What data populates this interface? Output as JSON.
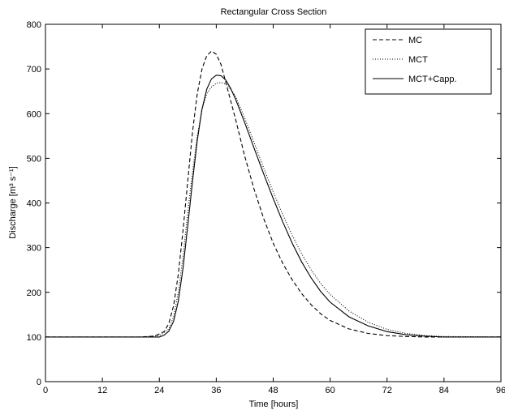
{
  "chart_data": {
    "type": "line",
    "title": "Rectangular Cross Section",
    "xlabel": "Time [hours]",
    "ylabel": "Discharge [m³ s⁻¹]",
    "xlim": [
      0,
      96
    ],
    "ylim": [
      0,
      800
    ],
    "xticks": [
      0,
      12,
      24,
      36,
      48,
      60,
      72,
      84,
      96
    ],
    "yticks": [
      0,
      100,
      200,
      300,
      400,
      500,
      600,
      700,
      800
    ],
    "grid": false,
    "legend_position": "top-right",
    "series": [
      {
        "name": "MC",
        "style": "dashed",
        "x": [
          0,
          20,
          23,
          25,
          26,
          27,
          28,
          29,
          30,
          31,
          32,
          33,
          34,
          35,
          36,
          37,
          38,
          40,
          42,
          44,
          46,
          48,
          50,
          52,
          54,
          56,
          58,
          60,
          64,
          68,
          72,
          76,
          80,
          84,
          96
        ],
        "y": [
          100,
          100,
          102,
          112,
          130,
          170,
          240,
          340,
          450,
          560,
          645,
          700,
          730,
          740,
          733,
          710,
          670,
          590,
          505,
          430,
          365,
          310,
          265,
          228,
          197,
          172,
          152,
          137,
          118,
          108,
          103,
          101,
          100,
          100,
          100
        ]
      },
      {
        "name": "MCT",
        "style": "dotted",
        "x": [
          0,
          20,
          24,
          26,
          27,
          28,
          29,
          30,
          31,
          32,
          33,
          34,
          35,
          36,
          37,
          38,
          39,
          40,
          42,
          44,
          46,
          48,
          50,
          52,
          54,
          56,
          58,
          60,
          64,
          68,
          72,
          76,
          80,
          84,
          96
        ],
        "y": [
          100,
          100,
          103,
          118,
          145,
          200,
          280,
          380,
          470,
          550,
          610,
          645,
          660,
          668,
          670,
          666,
          655,
          640,
          590,
          535,
          478,
          425,
          374,
          328,
          286,
          250,
          220,
          195,
          158,
          133,
          117,
          108,
          103,
          101,
          100
        ]
      },
      {
        "name": "MCT+Capp.",
        "style": "solid",
        "x": [
          0,
          20,
          24,
          25,
          26,
          27,
          28,
          29,
          30,
          31,
          32,
          33,
          34,
          35,
          36,
          37,
          38,
          39,
          40,
          42,
          44,
          46,
          48,
          50,
          52,
          54,
          56,
          58,
          60,
          64,
          68,
          72,
          76,
          80,
          84,
          96
        ],
        "y": [
          100,
          100,
          100,
          104,
          113,
          135,
          180,
          255,
          350,
          450,
          540,
          610,
          655,
          678,
          686,
          685,
          675,
          657,
          634,
          580,
          522,
          465,
          410,
          358,
          310,
          268,
          232,
          202,
          178,
          145,
          125,
          112,
          105,
          102,
          100,
          100
        ]
      }
    ]
  }
}
